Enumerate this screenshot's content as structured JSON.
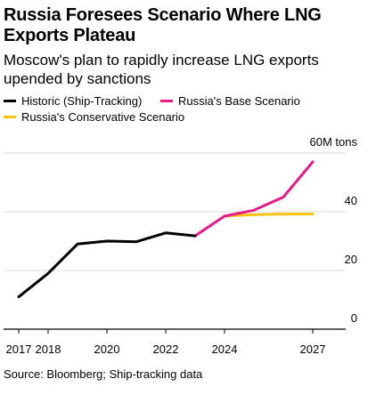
{
  "title": "Russia Foresees Scenario Where LNG Exports Plateau",
  "subtitle": "Moscow's plan to rapidly increase LNG exports upended by sanctions",
  "source": "Source: Bloomberg; Ship-tracking data",
  "colors": {
    "historic": "#000000",
    "base": "#e8198b",
    "conservative": "#f7c40d",
    "grid": "#d9d9d9",
    "axis": "#000000"
  },
  "chart_data": {
    "type": "line",
    "title": "Russia Foresees Scenario Where LNG Exports Plateau",
    "subtitle": "Moscow's plan to rapidly increase LNG exports upended by sanctions",
    "unit_label": "60M tons",
    "ylim": [
      0,
      60
    ],
    "y_ticks": [
      0,
      20,
      40,
      60
    ],
    "y_tick_labels": [
      "0",
      "20",
      "40",
      "60M tons"
    ],
    "xlim": [
      2017,
      2027
    ],
    "x_ticks": [
      2017,
      2018,
      2020,
      2022,
      2024,
      2027
    ],
    "x_tick_labels": [
      "2017",
      "2018",
      "2020",
      "2022",
      "2024",
      "2027"
    ],
    "grid": true,
    "legend_position": "top-left",
    "series": [
      {
        "name": "Historic (Ship-Tracking)",
        "color_key": "historic",
        "x": [
          2017,
          2018,
          2019,
          2020,
          2021,
          2022,
          2023
        ],
        "y": [
          11,
          19,
          29,
          30,
          29.8,
          32.8,
          31.8
        ]
      },
      {
        "name": "Russia's Base Scenario",
        "color_key": "base",
        "x": [
          2023,
          2024,
          2025,
          2026,
          2027
        ],
        "y": [
          31.8,
          38.5,
          40.5,
          45,
          57
        ]
      },
      {
        "name": "Russia's Conservative Scenario",
        "color_key": "conservative",
        "x": [
          2024,
          2025,
          2026,
          2027
        ],
        "y": [
          38.5,
          39,
          39.2,
          39.2
        ]
      }
    ]
  }
}
